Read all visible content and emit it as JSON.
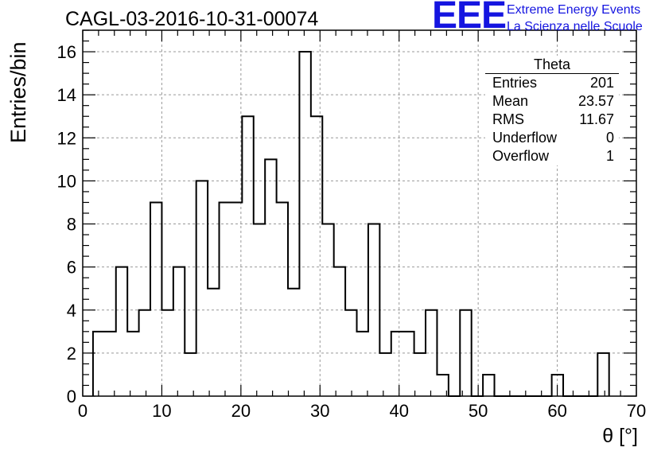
{
  "title": "CAGL-03-2016-10-31-00074",
  "logo": {
    "mark": "EEE",
    "line1": "Extreme Energy Events",
    "line2": "La Scienza nelle Scuole"
  },
  "stats": {
    "title": "Theta",
    "rows": [
      {
        "label": "Entries",
        "value": "201"
      },
      {
        "label": "Mean",
        "value": "23.57"
      },
      {
        "label": "RMS",
        "value": "11.67"
      },
      {
        "label": "Underflow",
        "value": "0"
      },
      {
        "label": "Overflow",
        "value": "1"
      }
    ]
  },
  "chart_data": {
    "type": "bar",
    "title": "CAGL-03-2016-10-31-00074",
    "xlabel": "θ [°]",
    "ylabel": "Entries/bin",
    "xlim": [
      0,
      70
    ],
    "ylim": [
      0,
      17
    ],
    "x_ticks": [
      0,
      10,
      20,
      30,
      40,
      50,
      60,
      70
    ],
    "y_ticks": [
      0,
      2,
      4,
      6,
      8,
      10,
      12,
      14,
      16
    ],
    "grid": true,
    "bin_start": 1.3,
    "bin_width": 1.45,
    "values": [
      3,
      3,
      6,
      3,
      4,
      9,
      4,
      6,
      2,
      10,
      5,
      9,
      9,
      13,
      8,
      11,
      9,
      5,
      16,
      13,
      8,
      6,
      4,
      3,
      8,
      2,
      3,
      3,
      2,
      4,
      1,
      0,
      4,
      0,
      1,
      0,
      0,
      0,
      0,
      0,
      1,
      0,
      0,
      0,
      2
    ],
    "colors": {
      "line": "#000000",
      "grid": "#999999"
    }
  }
}
